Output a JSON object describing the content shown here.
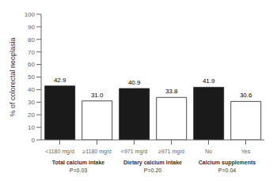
{
  "chart_data": {
    "type": "bar",
    "categories": [
      "<1180 mg/d",
      "≥1180 mg/d",
      "<971 mg/d",
      "≥971 mg/d",
      "No",
      "Yes"
    ],
    "values": [
      42.9,
      31.0,
      40.9,
      33.8,
      41.9,
      30.6
    ],
    "value_labels": [
      "42.9",
      "31.0",
      "40.9",
      "33.8",
      "41.9",
      "30.6"
    ],
    "colors": [
      "#1a1a1a",
      "#ffffff",
      "#1a1a1a",
      "#ffffff",
      "#1a1a1a",
      "#ffffff"
    ],
    "groups": [
      {
        "label": "Total calcium intake",
        "annotation": "P=0.03"
      },
      {
        "label": "Dietary calcium intake",
        "annotation": "P=0.20"
      },
      {
        "label": "Calcium supplements",
        "annotation": "P=0.04"
      }
    ],
    "ylabel": "% of colorectal neoplasia",
    "ylim": [
      0,
      100
    ],
    "yticks": [
      0,
      10,
      20,
      30,
      40,
      50,
      60,
      70,
      80,
      90,
      100
    ],
    "data_labels": true,
    "grid": false
  }
}
